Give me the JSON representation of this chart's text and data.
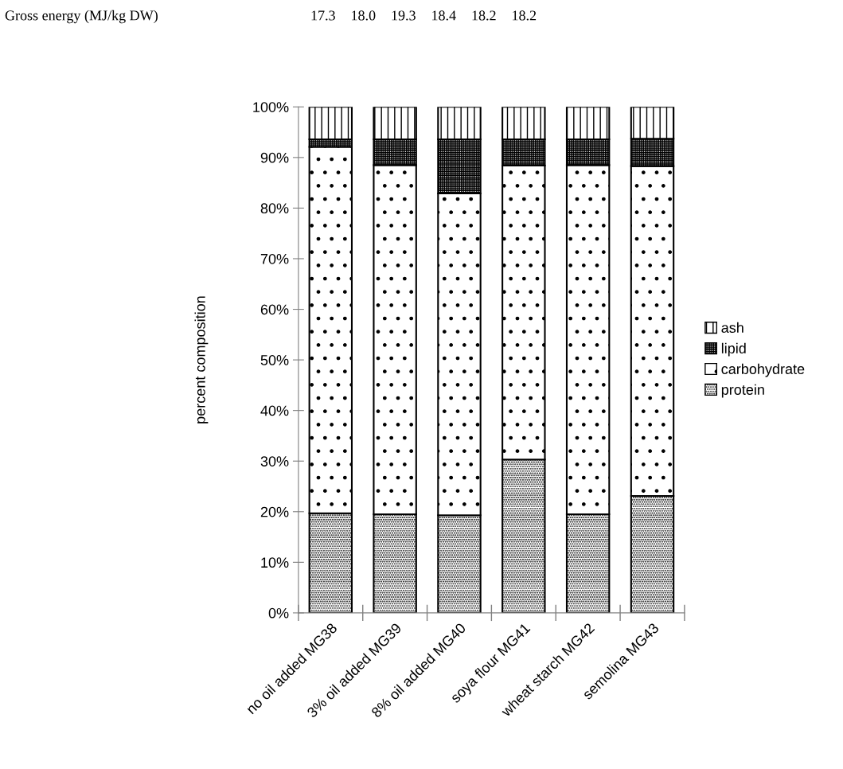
{
  "chart_data": {
    "type": "bar",
    "stacked": true,
    "ylabel": "percent composition",
    "categories": [
      "no oil added MG38",
      "3% oil added MG39",
      "8% oil added MG40",
      "soya flour MG41",
      "wheat starch MG42",
      "semolina MG43"
    ],
    "series": [
      {
        "name": "protein",
        "color": "#000000",
        "values": [
          19.7,
          19.5,
          19.3,
          30.3,
          19.5,
          23.1
        ]
      },
      {
        "name": "carbohydrate",
        "color": "#000000",
        "values": [
          72.4,
          69.0,
          63.6,
          58.1,
          69.0,
          65.2
        ]
      },
      {
        "name": "lipid",
        "color": "#000000",
        "values": [
          1.5,
          5.1,
          10.7,
          5.2,
          5.1,
          5.4
        ]
      },
      {
        "name": "ash",
        "color": "#000000",
        "values": [
          6.4,
          6.4,
          6.4,
          6.4,
          6.4,
          6.3
        ]
      }
    ],
    "ylim": [
      0,
      100
    ],
    "yticks": [
      {
        "value": 0,
        "label": "0%"
      },
      {
        "value": 10,
        "label": "10%"
      },
      {
        "value": 20,
        "label": "20%"
      },
      {
        "value": 30,
        "label": "30%"
      },
      {
        "value": 40,
        "label": "40%"
      },
      {
        "value": 50,
        "label": "50%"
      },
      {
        "value": 60,
        "label": "60%"
      },
      {
        "value": 70,
        "label": "70%"
      },
      {
        "value": 80,
        "label": "80%"
      },
      {
        "value": 90,
        "label": "90%"
      },
      {
        "value": 100,
        "label": "100%"
      }
    ],
    "grid": false,
    "legend": "right",
    "annotations": [
      "Gross energy (MJ/kg DW)",
      "17.3",
      "18.0",
      "19.3",
      "18.4",
      "18.2",
      "18.2"
    ]
  }
}
